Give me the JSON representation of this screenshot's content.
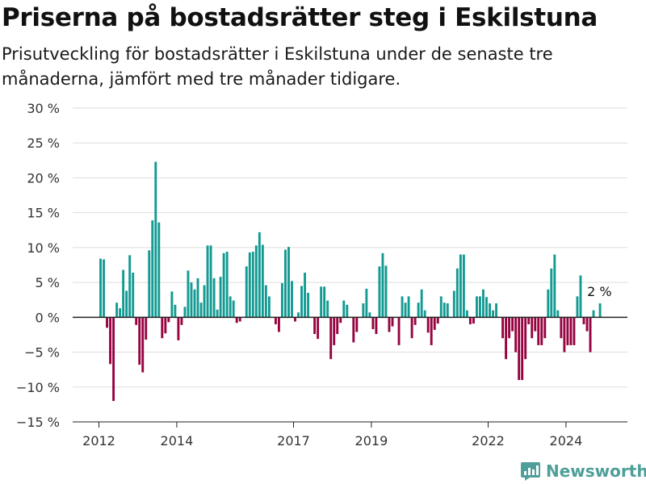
{
  "chart_data": {
    "type": "bar",
    "title": "Priserna på bostadsrätter steg i Eskilstuna",
    "subtitle": "Prisutveckling för bostadsrätter i Eskilstuna under de senaste tre månaderna, jämfört med tre månader tidigare.",
    "xlabel": "",
    "ylabel": "",
    "ylim": [
      -15,
      30
    ],
    "y_ticks": [
      30,
      25,
      20,
      15,
      10,
      5,
      0,
      -5,
      -10,
      -15
    ],
    "y_tick_labels": [
      "30 %",
      "25 %",
      "20 %",
      "15 %",
      "10 %",
      "5 %",
      "0 %",
      "−5 %",
      "−10 %",
      "−15 %"
    ],
    "x_ticks": [
      2012,
      2014,
      2017,
      2019,
      2022,
      2024
    ],
    "x_tick_labels": [
      "2012",
      "2014",
      "2017",
      "2019",
      "2022",
      "2024"
    ],
    "x_start": 2012,
    "periods_per_year": 12,
    "grid": true,
    "colors": {
      "positive": "#139a92",
      "negative": "#960340",
      "grid": "#dddddd",
      "baseline": "#222222"
    },
    "values": [
      8.4,
      8.3,
      -1.5,
      -6.7,
      -12,
      2.1,
      1.3,
      6.8,
      3.8,
      8.9,
      6.4,
      -1.1,
      -6.8,
      -7.9,
      -3.2,
      9.6,
      13.9,
      22.3,
      13.6,
      -3,
      -2.3,
      -0.7,
      3.7,
      1.8,
      -3.3,
      -1.1,
      1.5,
      6.7,
      5,
      4,
      5.6,
      2.1,
      4.6,
      10.3,
      10.3,
      5.6,
      1.1,
      5.8,
      9.2,
      9.4,
      3,
      2.4,
      -0.8,
      -0.6,
      0,
      7.3,
      9.3,
      9.4,
      10.3,
      12.2,
      10.4,
      4.6,
      3,
      0,
      -1,
      -2.1,
      4.9,
      9.7,
      10.1,
      5.2,
      -0.6,
      0.7,
      4.5,
      6.4,
      3.5,
      0,
      -2.4,
      -3.1,
      4.4,
      4.4,
      2.4,
      -6,
      -4,
      -2.4,
      -0.8,
      2.4,
      1.8,
      0,
      -3.6,
      -2.1,
      0,
      2,
      4.1,
      0.7,
      -1.7,
      -2.4,
      7.3,
      9.2,
      7.4,
      -2.1,
      -1.3,
      0,
      -4,
      3,
      2.1,
      3,
      -3,
      -1.1,
      2.1,
      4,
      1,
      -2.2,
      -4,
      -1.8,
      -0.9,
      3,
      2.1,
      2,
      0,
      3.8,
      7,
      9,
      9,
      1,
      -1,
      -0.9,
      3,
      3,
      4,
      2.9,
      2,
      1,
      2,
      0,
      -3,
      -6,
      -3,
      -2,
      -5,
      -9,
      -9,
      -6,
      -1,
      -3,
      -2,
      -4,
      -4,
      -3,
      4,
      7,
      9,
      1,
      -3,
      -5,
      -4,
      -4,
      -4,
      3,
      6,
      -1,
      -2,
      -5,
      1,
      0,
      2
    ],
    "annotation": "2 %"
  },
  "brand": {
    "name": "Newsworthy",
    "icon": "newsworthy-chart-logo-icon",
    "color": "#4e9f99"
  }
}
